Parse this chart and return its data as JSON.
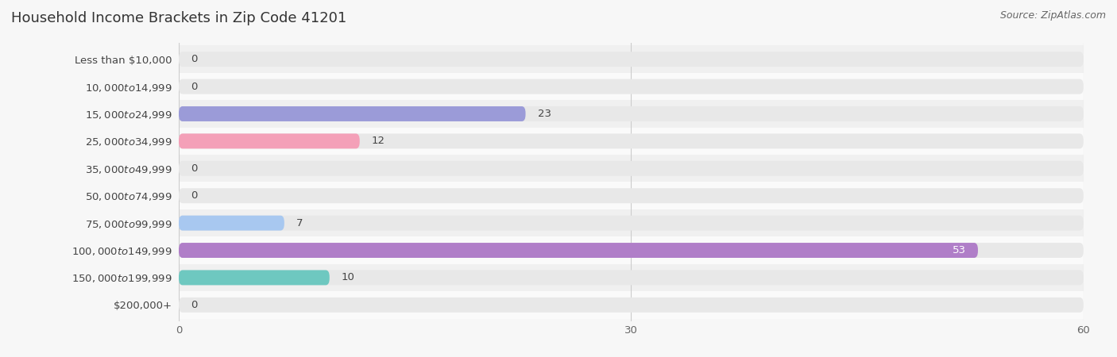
{
  "title": "Household Income Brackets in Zip Code 41201",
  "source": "Source: ZipAtlas.com",
  "categories": [
    "Less than $10,000",
    "$10,000 to $14,999",
    "$15,000 to $24,999",
    "$25,000 to $34,999",
    "$35,000 to $49,999",
    "$50,000 to $74,999",
    "$75,000 to $99,999",
    "$100,000 to $149,999",
    "$150,000 to $199,999",
    "$200,000+"
  ],
  "values": [
    0,
    0,
    23,
    12,
    0,
    0,
    7,
    53,
    10,
    0
  ],
  "bar_colors": [
    "#c9a8d4",
    "#7ecfc5",
    "#9b9bd8",
    "#f4a0b8",
    "#f5c9a0",
    "#f5a8a0",
    "#a8c8f0",
    "#b07ec8",
    "#6ec8c0",
    "#b8c4f0"
  ],
  "background_color": "#f7f7f7",
  "row_bg_odd": "#f0f0f0",
  "row_bg_even": "#fafafa",
  "bar_background_color": "#e8e8e8",
  "xlim": [
    0,
    60
  ],
  "xticks": [
    0,
    30,
    60
  ],
  "title_fontsize": 13,
  "label_fontsize": 9.5,
  "value_fontsize": 9.5,
  "source_fontsize": 9
}
